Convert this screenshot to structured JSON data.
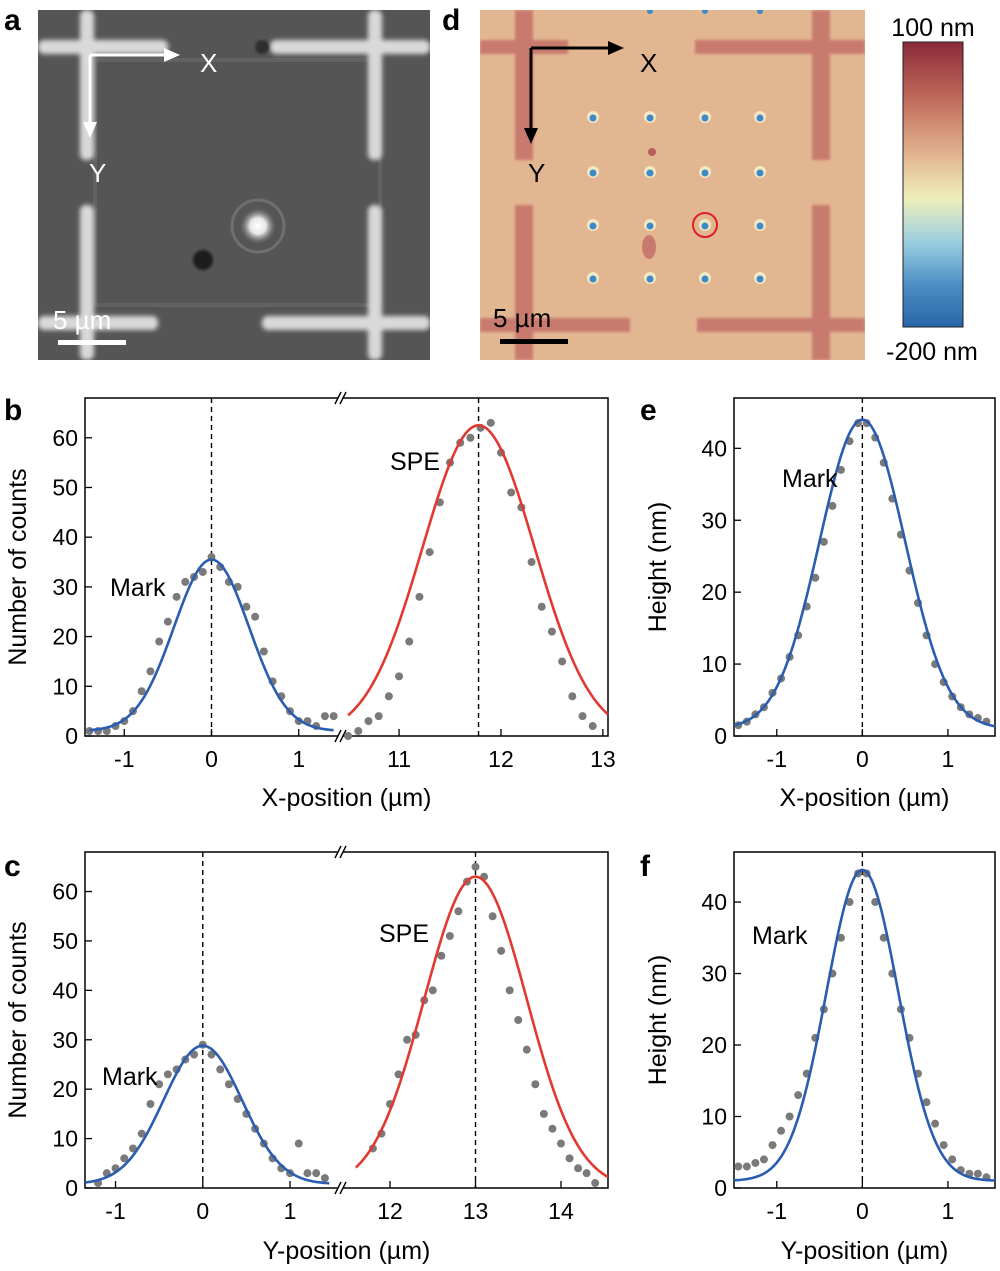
{
  "figure": {
    "panel_a": {
      "label": "a",
      "axis_x_label": "X",
      "axis_y_label": "Y",
      "scale_bar_label": "5 µm"
    },
    "panel_d": {
      "label": "d",
      "axis_x_label": "X",
      "axis_y_label": "Y",
      "scale_bar_label": "5 µm",
      "colorbar_max_label": "100 nm",
      "colorbar_min_label": "-200 nm",
      "colorbar_range_nm": [
        -200,
        100
      ],
      "colors": {
        "top": "#8b2a3a",
        "upper": "#c06a5a",
        "mid_upper": "#e3b692",
        "mid": "#eeeebb",
        "mid_lower": "#9ccfe0",
        "lower": "#4d8fc4",
        "bottom": "#2866a8"
      }
    }
  },
  "chart_data": [
    {
      "id": "b",
      "label": "b",
      "type": "scatter",
      "xlabel": "X-position (µm)",
      "ylabel": "Number of counts",
      "ylim": [
        0,
        68
      ],
      "yticks": [
        0,
        10,
        20,
        30,
        40,
        50,
        60
      ],
      "broken_axis": true,
      "segments": [
        {
          "xlim": [
            -1.45,
            1.45
          ],
          "xticks": [
            -1,
            0,
            1
          ]
        },
        {
          "xlim": [
            10.45,
            13.05
          ],
          "xticks": [
            11,
            12,
            13
          ]
        }
      ],
      "series": [
        {
          "name": "Mark",
          "color": "#2a5db0",
          "segment": 0,
          "amplitude": 34.5,
          "center": 0,
          "sigma": 0.43,
          "offset": 1.0,
          "fit_range": [
            -1.4,
            1.4
          ],
          "data_x": [
            -1.4,
            -1.3,
            -1.2,
            -1.1,
            -1.0,
            -0.9,
            -0.8,
            -0.7,
            -0.6,
            -0.5,
            -0.4,
            -0.3,
            -0.2,
            -0.1,
            0.0,
            0.1,
            0.2,
            0.3,
            0.4,
            0.5,
            0.6,
            0.7,
            0.8,
            0.9,
            1.0,
            1.1,
            1.2,
            1.3,
            1.4
          ],
          "data_y": [
            1,
            1,
            1,
            2,
            3,
            5,
            9,
            13,
            19,
            23,
            28,
            31,
            32,
            33,
            36,
            34,
            31,
            30,
            26,
            24,
            17,
            11,
            8,
            5,
            3,
            3,
            2,
            4,
            4
          ],
          "annotation": "Mark",
          "dashed_x": 0
        },
        {
          "name": "SPE",
          "color": "#e03a30",
          "segment": 1,
          "amplitude": 62.5,
          "center": 11.78,
          "sigma": 0.55,
          "offset": 0,
          "fit_range": [
            10.5,
            13.05
          ],
          "data_x": [
            10.5,
            10.6,
            10.7,
            10.8,
            10.9,
            11.0,
            11.1,
            11.2,
            11.3,
            11.4,
            11.5,
            11.6,
            11.7,
            11.8,
            11.9,
            12.0,
            12.1,
            12.2,
            12.3,
            12.4,
            12.5,
            12.6,
            12.7,
            12.8,
            12.9
          ],
          "data_y": [
            0,
            1,
            3,
            4,
            8,
            12,
            19,
            28,
            37,
            47,
            55,
            59,
            60,
            62,
            63,
            57,
            49,
            46,
            35,
            26,
            21,
            15,
            8,
            4,
            2
          ],
          "annotation": "SPE",
          "dashed_x": 11.78
        }
      ]
    },
    {
      "id": "c",
      "label": "c",
      "type": "scatter",
      "xlabel": "Y-position (µm)",
      "ylabel": "Number of counts",
      "ylim": [
        0,
        68
      ],
      "yticks": [
        0,
        10,
        20,
        30,
        40,
        50,
        60
      ],
      "broken_axis": true,
      "segments": [
        {
          "xlim": [
            -1.35,
            1.55
          ],
          "xticks": [
            -1,
            0,
            1
          ]
        },
        {
          "xlim": [
            11.45,
            14.55
          ],
          "xticks": [
            12,
            13,
            14
          ]
        }
      ],
      "series": [
        {
          "name": "Mark",
          "color": "#2a5db0",
          "segment": 0,
          "amplitude": 28,
          "center": 0,
          "sigma": 0.45,
          "offset": 0.8,
          "fit_range": [
            -1.35,
            1.45
          ],
          "data_x": [
            -1.2,
            -1.1,
            -1.0,
            -0.9,
            -0.8,
            -0.7,
            -0.6,
            -0.5,
            -0.4,
            -0.3,
            -0.2,
            -0.1,
            0.0,
            0.1,
            0.2,
            0.3,
            0.4,
            0.5,
            0.6,
            0.7,
            0.8,
            0.9,
            1.0,
            1.1,
            1.2,
            1.3,
            1.4
          ],
          "data_y": [
            1,
            3,
            4,
            6,
            8,
            11,
            17,
            21,
            23,
            24,
            26,
            27,
            29,
            27,
            24,
            21,
            18,
            15,
            12,
            9,
            6,
            4,
            3,
            9,
            3,
            3,
            2
          ],
          "annotation": "Mark",
          "dashed_x": 0
        },
        {
          "name": "SPE",
          "color": "#e03a30",
          "segment": 1,
          "amplitude": 63,
          "center": 13.0,
          "sigma": 0.6,
          "offset": 0,
          "fit_range": [
            11.6,
            14.55
          ],
          "data_x": [
            11.8,
            11.9,
            12.0,
            12.1,
            12.2,
            12.3,
            12.4,
            12.5,
            12.6,
            12.7,
            12.8,
            12.9,
            13.0,
            13.1,
            13.2,
            13.3,
            13.4,
            13.5,
            13.6,
            13.7,
            13.8,
            13.9,
            14.0,
            14.1,
            14.2,
            14.3,
            14.4
          ],
          "data_y": [
            8,
            11,
            17,
            23,
            30,
            31,
            38,
            40,
            47,
            51,
            56,
            62,
            65,
            63,
            55,
            48,
            40,
            34,
            28,
            21,
            15,
            12,
            9,
            6,
            4,
            3,
            1
          ],
          "annotation": "SPE",
          "dashed_x": 13.0
        }
      ]
    },
    {
      "id": "e",
      "label": "e",
      "type": "scatter",
      "xlabel": "X-position (µm)",
      "ylabel": "Height (nm)",
      "xlim": [
        -1.5,
        1.55
      ],
      "xticks": [
        -1,
        0,
        1
      ],
      "ylim": [
        0,
        47
      ],
      "yticks": [
        0,
        10,
        20,
        30,
        40
      ],
      "broken_axis": false,
      "series": [
        {
          "name": "Mark",
          "color": "#2a5db0",
          "amplitude": 43,
          "center": 0,
          "sigma": 0.5,
          "offset": 1.0,
          "fit_range": [
            -1.5,
            1.55
          ],
          "data_x": [
            -1.45,
            -1.35,
            -1.25,
            -1.15,
            -1.05,
            -0.95,
            -0.85,
            -0.75,
            -0.65,
            -0.55,
            -0.45,
            -0.35,
            -0.25,
            -0.15,
            -0.05,
            0.05,
            0.15,
            0.25,
            0.35,
            0.45,
            0.55,
            0.65,
            0.75,
            0.85,
            0.95,
            1.05,
            1.15,
            1.25,
            1.35,
            1.45
          ],
          "data_y": [
            1.5,
            2,
            3,
            4,
            6,
            8,
            11,
            14,
            18,
            22,
            27,
            32,
            37,
            41,
            43.5,
            43.5,
            41.5,
            38,
            33,
            28,
            23,
            18.5,
            14,
            10,
            7.5,
            5.5,
            4,
            3,
            2.5,
            2
          ],
          "annotation": "Mark",
          "dashed_x": 0
        }
      ]
    },
    {
      "id": "f",
      "label": "f",
      "type": "scatter",
      "xlabel": "Y-position (µm)",
      "ylabel": "Height (nm)",
      "xlim": [
        -1.5,
        1.55
      ],
      "xticks": [
        -1,
        0,
        1
      ],
      "ylim": [
        0,
        47
      ],
      "yticks": [
        0,
        10,
        20,
        30,
        40
      ],
      "broken_axis": false,
      "series": [
        {
          "name": "Mark",
          "color": "#2a5db0",
          "amplitude": 43.5,
          "center": 0,
          "sigma": 0.42,
          "offset": 1.0,
          "fit_range": [
            -1.5,
            1.55
          ],
          "data_x": [
            -1.45,
            -1.35,
            -1.25,
            -1.15,
            -1.05,
            -0.95,
            -0.85,
            -0.75,
            -0.65,
            -0.55,
            -0.45,
            -0.35,
            -0.25,
            -0.15,
            -0.05,
            0.05,
            0.15,
            0.25,
            0.35,
            0.45,
            0.55,
            0.65,
            0.75,
            0.85,
            0.95,
            1.05,
            1.15,
            1.25,
            1.35,
            1.45
          ],
          "data_y": [
            3,
            3,
            3.5,
            4,
            6,
            8,
            10,
            13,
            16,
            21,
            25,
            30,
            35,
            40,
            44,
            44,
            40,
            35,
            30,
            25,
            21,
            16,
            12,
            9,
            6,
            4,
            2.5,
            2,
            2,
            1.5
          ],
          "annotation": "Mark",
          "dashed_x": 0
        }
      ]
    }
  ]
}
